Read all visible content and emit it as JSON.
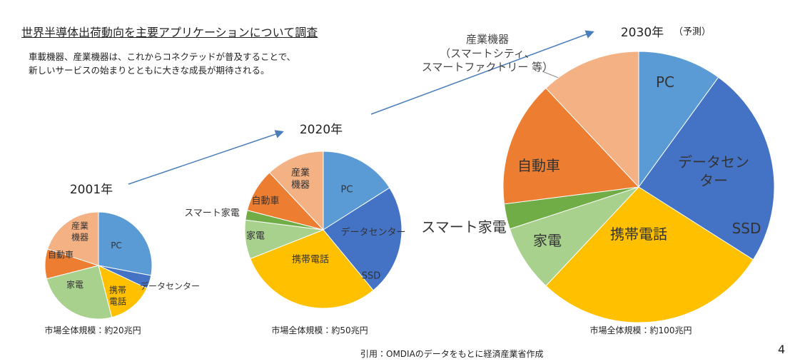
{
  "slide": {
    "title": "世界半導体出荷動向を主要アプリケーションについて調査",
    "description": "車載機器、産業機器は、これからコネクテッドが普及することで、\n新しいサービスの始まりとともに大きな成長が期待される。",
    "source": "引用：OMDIAのデータをもとに経済産業省作成",
    "page_number": "4"
  },
  "chart_data": [
    {
      "type": "pie",
      "title": "2001年",
      "caption": "市場全体規模：約20兆円",
      "categories": [
        "PC",
        "データセンター",
        "携帯\n電話",
        "家電",
        "自動車",
        "産業\n機器"
      ],
      "values": [
        28,
        4,
        14,
        25,
        9,
        20
      ],
      "colors": [
        "#5b9bd5",
        "#4472c4",
        "#ffc000",
        "#a9d18e",
        "#ed7d31",
        "#f4b183"
      ]
    },
    {
      "type": "pie",
      "title": "2020年",
      "caption": "市場全体規模：約50兆円",
      "annotation": "SSD",
      "categories": [
        "PC",
        "データセンター",
        "携帯電話",
        "家電",
        "スマート家電",
        "自動車",
        "産業\n機器"
      ],
      "values": [
        16,
        23,
        30,
        8,
        2,
        9,
        12
      ],
      "colors": [
        "#5b9bd5",
        "#4472c4",
        "#ffc000",
        "#a9d18e",
        "#70ad47",
        "#ed7d31",
        "#f4b183"
      ]
    },
    {
      "type": "pie",
      "title": "2030年",
      "title_note": "（予測）",
      "caption": "市場全体規模：約100兆円",
      "annotation": "SSD",
      "categories": [
        "PC",
        "データセンター",
        "携帯電話",
        "家電",
        "スマート家電",
        "自動車",
        "産業機器\n（スマートシティ、\nスマートファクトリー 等）"
      ],
      "values": [
        10,
        24,
        28,
        8,
        3,
        15,
        12
      ],
      "colors": [
        "#5b9bd5",
        "#4472c4",
        "#ffc000",
        "#a9d18e",
        "#70ad47",
        "#ed7d31",
        "#f4b183"
      ]
    }
  ]
}
